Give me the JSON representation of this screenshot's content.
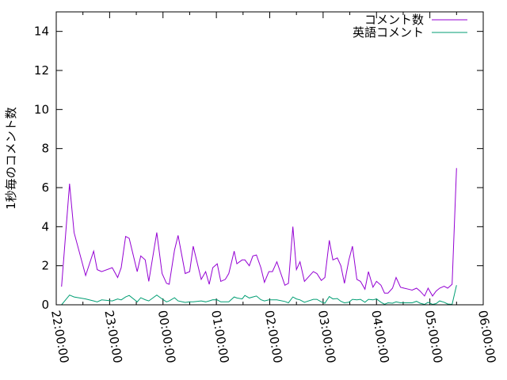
{
  "chart_data": {
    "type": "line",
    "title": "",
    "xlabel": "",
    "ylabel": "1秒毎のコメント数",
    "xlim": [
      "22:00:00",
      "06:00:00"
    ],
    "ylim": [
      0,
      15
    ],
    "xticks": [
      "22:00:00",
      "23:00:00",
      "00:00:00",
      "01:00:00",
      "02:00:00",
      "03:00:00",
      "04:00:00",
      "05:00:00",
      "06:00:00"
    ],
    "yticks": [
      "0",
      "2",
      "4",
      "6",
      "8",
      "10",
      "12",
      "14"
    ],
    "grid": false,
    "legend_position": "top-right",
    "x": [
      "22:06",
      "22:15",
      "22:20",
      "22:33",
      "22:42",
      "22:46",
      "22:51",
      "23:03",
      "23:09",
      "23:13",
      "23:18",
      "23:22",
      "23:31",
      "23:35",
      "23:40",
      "23:44",
      "23:53",
      "23:59",
      "00:04",
      "00:07",
      "00:13",
      "00:17",
      "00:25",
      "00:30",
      "00:34",
      "00:43",
      "00:48",
      "00:52",
      "00:56",
      "01:01",
      "01:05",
      "01:10",
      "01:14",
      "01:20",
      "01:23",
      "01:29",
      "01:32",
      "01:37",
      "01:41",
      "01:45",
      "01:50",
      "01:54",
      "01:59",
      "02:03",
      "02:08",
      "02:17",
      "02:21",
      "02:26",
      "02:30",
      "02:34",
      "02:39",
      "02:49",
      "02:53",
      "02:58",
      "03:02",
      "03:07",
      "03:11",
      "03:16",
      "03:20",
      "03:24",
      "03:29",
      "03:33",
      "03:38",
      "03:42",
      "03:47",
      "03:51",
      "03:56",
      "04:00",
      "04:05",
      "04:09",
      "04:13",
      "04:18",
      "04:22",
      "04:27",
      "04:31",
      "04:36",
      "04:40",
      "04:45",
      "04:49",
      "04:54",
      "04:58",
      "05:03",
      "05:07",
      "05:11",
      "05:16",
      "05:20",
      "05:25",
      "05:30"
    ],
    "series": [
      {
        "name": "コメント数",
        "color": "#9400d3",
        "values": [
          0.93,
          6.2,
          3.7,
          1.5,
          2.75,
          1.8,
          1.7,
          1.9,
          1.4,
          1.9,
          3.5,
          3.4,
          1.7,
          2.5,
          2.3,
          1.2,
          3.7,
          1.6,
          1.1,
          1.05,
          2.8,
          3.55,
          1.6,
          1.7,
          3.0,
          1.3,
          1.7,
          1.05,
          1.9,
          2.1,
          1.2,
          1.3,
          1.6,
          2.75,
          2.1,
          2.3,
          2.3,
          2.0,
          2.5,
          2.55,
          1.9,
          1.15,
          1.7,
          1.7,
          2.2,
          1.0,
          1.1,
          4.0,
          1.8,
          2.2,
          1.2,
          1.7,
          1.6,
          1.25,
          1.4,
          3.3,
          2.3,
          2.4,
          2.0,
          1.1,
          2.3,
          3.0,
          1.3,
          1.2,
          0.8,
          1.7,
          0.9,
          1.2,
          1.0,
          0.6,
          0.6,
          0.85,
          1.4,
          0.9,
          0.85,
          0.8,
          0.75,
          0.85,
          0.7,
          0.45,
          0.85,
          0.45,
          0.7,
          0.85,
          0.95,
          0.85,
          1.05,
          7.0
        ]
      },
      {
        "name": "英語コメント",
        "color": "#009e73",
        "values": [
          0,
          0.5,
          0.4,
          0.3,
          0.2,
          0.15,
          0.25,
          0.2,
          0.3,
          0.25,
          0.4,
          0.48,
          0.15,
          0.36,
          0.26,
          0.2,
          0.5,
          0.3,
          0.15,
          0.2,
          0.36,
          0.2,
          0.12,
          0.15,
          0.15,
          0.2,
          0.15,
          0.2,
          0.26,
          0.25,
          0.15,
          0.15,
          0.15,
          0.4,
          0.35,
          0.3,
          0.48,
          0.35,
          0.4,
          0.45,
          0.26,
          0.2,
          0.25,
          0.25,
          0.25,
          0.17,
          0.1,
          0.4,
          0.3,
          0.25,
          0.13,
          0.28,
          0.28,
          0.15,
          0.08,
          0.42,
          0.3,
          0.32,
          0.18,
          0.1,
          0.13,
          0.28,
          0.25,
          0.28,
          0.13,
          0.28,
          0.25,
          0.3,
          0.13,
          0.03,
          0.1,
          0.08,
          0.15,
          0.1,
          0.1,
          0.1,
          0.1,
          0.18,
          0.08,
          0.02,
          0.13,
          0.02,
          0.06,
          0.2,
          0.13,
          0.04,
          0.02,
          1.0
        ]
      }
    ]
  }
}
